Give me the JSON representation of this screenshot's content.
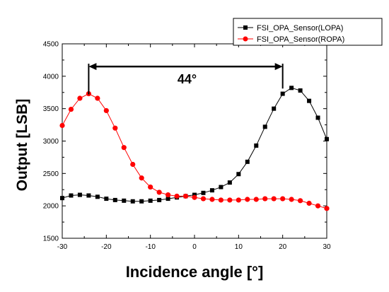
{
  "chart_data": {
    "type": "line",
    "xlabel": "Incidence angle [°]",
    "ylabel": "Output [LSB]",
    "xlim": [
      -30,
      30
    ],
    "ylim": [
      1500,
      4500
    ],
    "xticks": [
      -30,
      -20,
      -10,
      0,
      10,
      20,
      30
    ],
    "yticks": [
      1500,
      2000,
      2500,
      3000,
      3500,
      4000,
      4500
    ],
    "x_tick_labels": [
      "-30",
      "-20",
      "-10",
      "0",
      "10",
      "20",
      "30"
    ],
    "y_tick_labels": [
      "1500",
      "2000",
      "2500",
      "3000",
      "3500",
      "4000",
      "4500"
    ],
    "legend_position": "top-right",
    "annotation": {
      "text": "44°",
      "from_x": -24,
      "to_x": 20,
      "y": 4150
    },
    "series": [
      {
        "name": "FSI_OPA_Sensor(LOPA)",
        "color": "#000000",
        "marker": "square",
        "x": [
          -30,
          -28,
          -26,
          -24,
          -22,
          -20,
          -18,
          -16,
          -14,
          -12,
          -10,
          -8,
          -6,
          -4,
          -2,
          0,
          2,
          4,
          6,
          8,
          10,
          12,
          14,
          16,
          18,
          20,
          22,
          24,
          26,
          28,
          30
        ],
        "y": [
          2120,
          2160,
          2170,
          2160,
          2140,
          2110,
          2090,
          2080,
          2070,
          2070,
          2080,
          2090,
          2110,
          2130,
          2150,
          2170,
          2200,
          2240,
          2290,
          2360,
          2490,
          2680,
          2930,
          3220,
          3500,
          3730,
          3820,
          3780,
          3620,
          3360,
          3030
        ]
      },
      {
        "name": "FSI_OPA_Sensor(ROPA)",
        "color": "#ff0000",
        "marker": "circle",
        "x": [
          -30,
          -28,
          -26,
          -24,
          -22,
          -20,
          -18,
          -16,
          -14,
          -12,
          -10,
          -8,
          -6,
          -4,
          -2,
          0,
          2,
          4,
          6,
          8,
          10,
          12,
          14,
          16,
          18,
          20,
          22,
          24,
          26,
          28,
          30
        ],
        "y": [
          3240,
          3490,
          3660,
          3730,
          3660,
          3470,
          3200,
          2900,
          2640,
          2430,
          2290,
          2210,
          2170,
          2150,
          2150,
          2130,
          2110,
          2100,
          2090,
          2090,
          2090,
          2100,
          2100,
          2110,
          2110,
          2110,
          2100,
          2080,
          2040,
          2000,
          1960
        ]
      }
    ]
  }
}
